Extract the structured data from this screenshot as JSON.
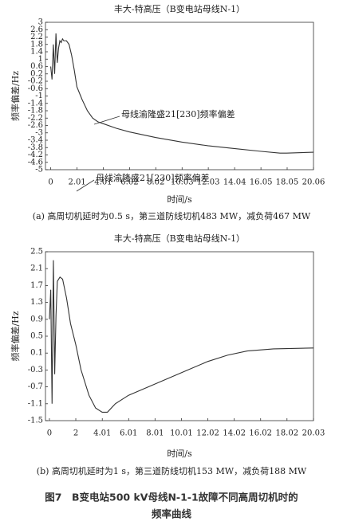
{
  "chart_data": [
    {
      "type": "line",
      "title": "丰大-特高压（B变电站母线N-1）",
      "y_label": "频率偏差/Hz",
      "x_label": "时间/s",
      "annotation": "母线渝隆盛21[230]频率偏差",
      "caption": "(a) 高周切机延时为0.5 s，第三道防线切机483 MW，减负荷467 MW",
      "x": [
        0,
        0.1,
        0.2,
        0.3,
        0.4,
        0.5,
        0.6,
        0.7,
        0.8,
        0.9,
        1.0,
        1.2,
        1.4,
        1.6,
        1.8,
        2.0,
        2.4,
        2.8,
        3.2,
        3.6,
        4,
        5,
        6,
        7,
        8,
        10,
        12,
        14,
        16,
        17.5,
        18,
        20.06
      ],
      "series": [
        {
          "name": "母线渝隆盛21[230]频率偏差",
          "color": "#333333",
          "values": [
            0.6,
            -0.1,
            1.8,
            0.2,
            2.4,
            0.8,
            1.6,
            2.0,
            1.9,
            2.1,
            2.0,
            2.0,
            1.8,
            1.2,
            0.4,
            -0.5,
            -1.2,
            -1.8,
            -2.2,
            -2.4,
            -2.5,
            -2.75,
            -2.95,
            -3.1,
            -3.25,
            -3.5,
            -3.7,
            -3.85,
            -4.0,
            -4.1,
            -4.1,
            -4.05
          ]
        }
      ],
      "xlim": [
        -0.4,
        20.06
      ],
      "xticks": [
        0,
        2.01,
        4.01,
        6.02,
        8.02,
        10.03,
        12.03,
        14.04,
        16.05,
        18.05,
        20.06
      ],
      "ylim": [
        -5,
        3
      ],
      "yticks": [
        3,
        2.6,
        2.2,
        1.8,
        1.4,
        1,
        0.6,
        0.2,
        -0.2,
        -0.6,
        -1,
        -1.4,
        -1.8,
        -2.2,
        -2.6,
        -3,
        -3.4,
        -3.8,
        -4.2,
        -4.6,
        -5
      ]
    },
    {
      "type": "line",
      "title": "丰大-特高压（B变电站母线N-1）",
      "y_label": "频率偏差/Hz",
      "x_label": "时间/s",
      "annotation": "母线渝隆盛21[230]频率偏差",
      "caption": "(b) 高周切机延时为1 s，第三道防线切机153 MW，减负荷188 MW",
      "x": [
        0,
        0.1,
        0.2,
        0.3,
        0.4,
        0.5,
        0.6,
        0.8,
        1.0,
        1.3,
        1.6,
        2.0,
        2.4,
        3,
        3.5,
        4,
        4.4,
        5,
        6,
        7.5,
        9,
        10.5,
        12,
        13.5,
        15,
        17,
        20.03
      ],
      "series": [
        {
          "name": "母线渝隆盛21[230]频率偏差",
          "color": "#333333",
          "values": [
            0.9,
            1.6,
            -1.1,
            2.3,
            -0.4,
            1.0,
            1.8,
            1.9,
            1.85,
            1.4,
            0.8,
            0.3,
            -0.3,
            -0.9,
            -1.2,
            -1.3,
            -1.3,
            -1.1,
            -0.9,
            -0.7,
            -0.5,
            -0.3,
            -0.1,
            0.05,
            0.15,
            0.2,
            0.22
          ]
        }
      ],
      "xlim": [
        -0.3,
        20.03
      ],
      "xticks": [
        0,
        2,
        4.01,
        6.01,
        8.01,
        10.01,
        12.02,
        14.02,
        16.02,
        18.02,
        20.03
      ],
      "ylim": [
        -1.5,
        2.5
      ],
      "yticks": [
        2.5,
        2.1,
        1.7,
        1.3,
        0.9,
        0.5,
        0.1,
        -0.3,
        -0.7,
        -1.1,
        -1.5
      ]
    }
  ],
  "figure_caption": [
    "图7　B变电站500 kV母线N-1-1故障不同高周切机时的",
    "频率曲线"
  ]
}
